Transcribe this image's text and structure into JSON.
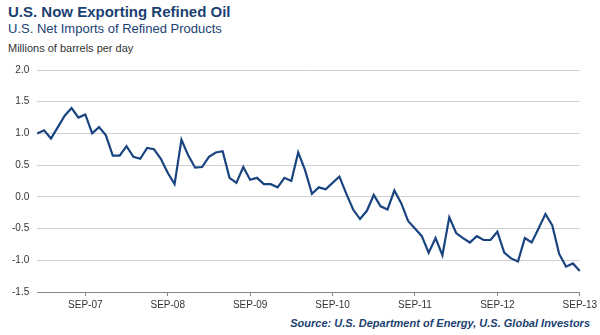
{
  "chart_data": {
    "type": "line",
    "title": "U.S. Now Exporting Refined Oil",
    "subtitle": "U.S. Net Imports of Refined Products",
    "y_label": "Millions of barrels per day",
    "source": "Source: U.S. Department of Energy, U.S. Global Investors",
    "categories": [
      null,
      null,
      null,
      null,
      null,
      null,
      null,
      "SEP-07",
      null,
      null,
      null,
      null,
      null,
      null,
      null,
      null,
      null,
      null,
      null,
      "SEP-08",
      null,
      null,
      null,
      null,
      null,
      null,
      null,
      null,
      null,
      null,
      null,
      "SEP-09",
      null,
      null,
      null,
      null,
      null,
      null,
      null,
      null,
      null,
      null,
      null,
      "SEP-10",
      null,
      null,
      null,
      null,
      null,
      null,
      null,
      null,
      null,
      null,
      null,
      "SEP-11",
      null,
      null,
      null,
      null,
      null,
      null,
      null,
      null,
      null,
      null,
      null,
      "SEP-12",
      null,
      null,
      null,
      null,
      null,
      null,
      null,
      null,
      null,
      null,
      null,
      "SEP-13"
    ],
    "values": [
      1.0,
      1.05,
      0.92,
      1.1,
      1.28,
      1.4,
      1.25,
      1.3,
      1.0,
      1.1,
      0.97,
      0.65,
      0.65,
      0.8,
      0.63,
      0.6,
      0.77,
      0.75,
      0.6,
      0.38,
      0.2,
      0.9,
      0.65,
      0.46,
      0.47,
      0.63,
      0.7,
      0.72,
      0.3,
      0.22,
      0.47,
      0.27,
      0.3,
      0.2,
      0.2,
      0.15,
      0.3,
      0.25,
      0.7,
      0.42,
      0.05,
      0.15,
      0.12,
      0.22,
      0.32,
      0.05,
      -0.2,
      -0.35,
      -0.22,
      0.03,
      -0.15,
      -0.2,
      0.1,
      -0.1,
      -0.38,
      -0.5,
      -0.62,
      -0.88,
      -0.65,
      -0.92,
      -0.32,
      -0.57,
      -0.65,
      -0.72,
      -0.62,
      -0.68,
      -0.68,
      -0.55,
      -0.88,
      -0.97,
      -1.02,
      -0.65,
      -0.72,
      -0.5,
      -0.27,
      -0.45,
      -0.9,
      -1.1,
      -1.05,
      -1.17
    ],
    "color": "#1a4480",
    "ylim": [
      -1.5,
      2.0
    ],
    "yticks": [
      -1.5,
      {
        "value": -1.0,
        "label": "-1.0"
      },
      -0.5,
      {
        "value": 0,
        "label": "0.0"
      },
      0.5,
      {
        "value": 1,
        "label": "1.0"
      },
      1.5,
      {
        "value": 2,
        "label": "2.0"
      }
    ],
    "grid": true
  }
}
